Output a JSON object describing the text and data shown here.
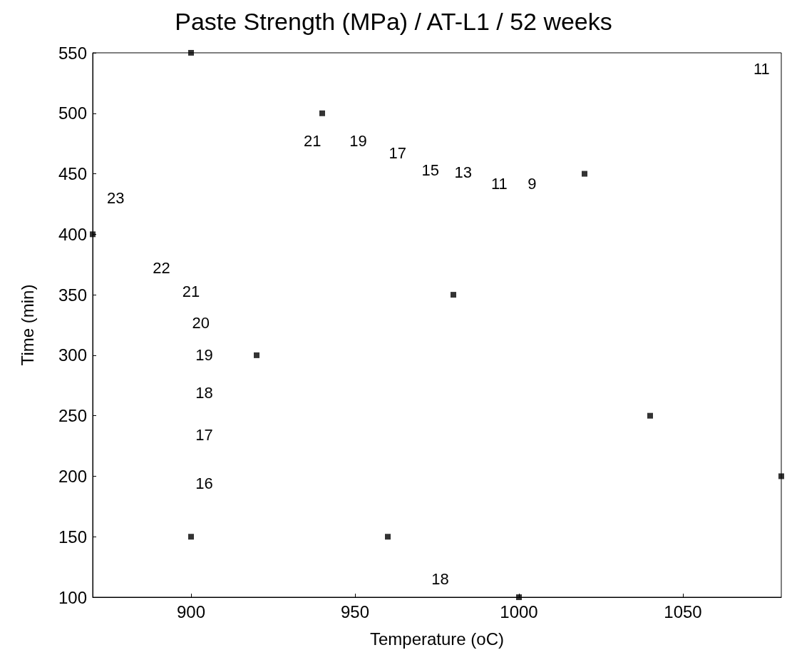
{
  "chart_data": {
    "type": "scatter",
    "title": "Paste Strength (MPa) / AT-L1 / 52 weeks",
    "xlabel": "Temperature (oC)",
    "ylabel": "Time (min)",
    "x": [
      900,
      940,
      1020,
      870,
      980,
      920,
      1040,
      1080,
      900,
      960,
      1000
    ],
    "values": [
      550,
      500,
      450,
      400,
      350,
      300,
      250,
      200,
      150,
      150,
      100
    ],
    "color": "#000000",
    "marker": "square",
    "xlim": [
      870,
      1080
    ],
    "xticks": [
      900,
      950,
      1000,
      1050
    ],
    "ylim": [
      100,
      550
    ],
    "yticks": [
      100,
      150,
      200,
      250,
      300,
      350,
      400,
      450,
      500,
      550
    ],
    "grid": false,
    "annotations": [
      "23",
      "22",
      "21",
      "20",
      "19",
      "18",
      "17",
      "16",
      "18",
      "21",
      "19",
      "17",
      "15",
      "13",
      "11",
      "9",
      "11"
    ]
  }
}
